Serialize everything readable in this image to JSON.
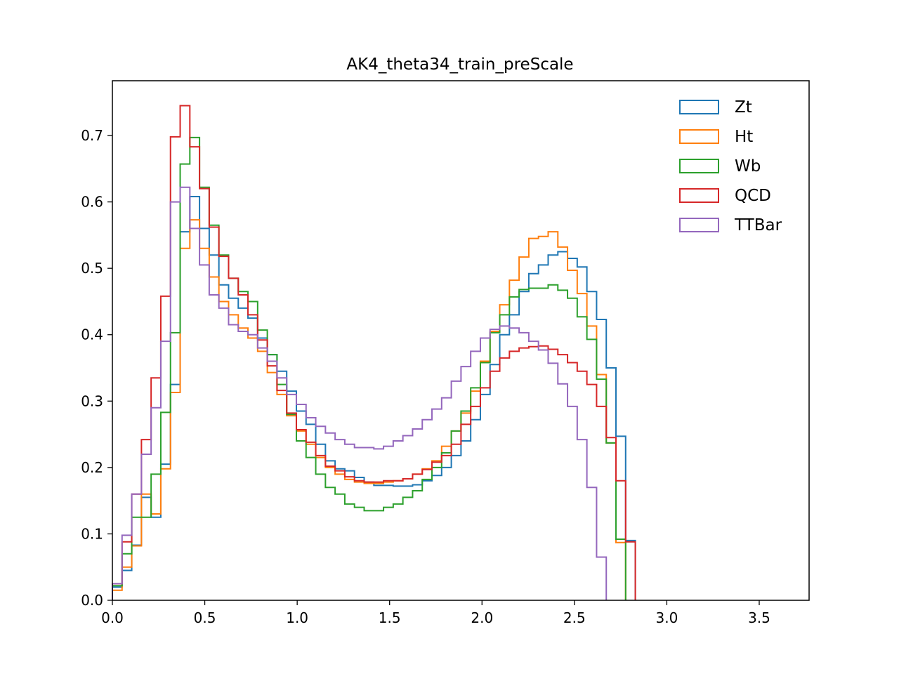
{
  "chart_data": {
    "type": "histogram-step",
    "title": "AK4_theta34_train_preScale",
    "xlabel": "",
    "ylabel": "",
    "xlim": [
      0.0,
      3.7699
    ],
    "ylim": [
      0.0,
      0.7825
    ],
    "xticks": [
      0.0,
      0.5,
      1.0,
      1.5,
      2.0,
      2.5,
      3.0,
      3.5
    ],
    "xtick_labels": [
      "0.0",
      "0.5",
      "1.0",
      "1.5",
      "2.0",
      "2.5",
      "3.0",
      "3.5"
    ],
    "yticks": [
      0.0,
      0.1,
      0.2,
      0.3,
      0.4,
      0.5,
      0.6,
      0.7
    ],
    "ytick_labels": [
      "0.0",
      "0.1",
      "0.2",
      "0.3",
      "0.4",
      "0.5",
      "0.6",
      "0.7"
    ],
    "grid": false,
    "legend_position": "upper right",
    "bin_edges_start": 0.0,
    "bin_width": 0.0524,
    "n_bins": 60,
    "series": [
      {
        "name": "Zt",
        "color": "#1f77b4",
        "values": [
          0.02,
          0.045,
          0.083,
          0.155,
          0.125,
          0.205,
          0.325,
          0.555,
          0.608,
          0.56,
          0.52,
          0.475,
          0.455,
          0.44,
          0.425,
          0.395,
          0.37,
          0.345,
          0.315,
          0.285,
          0.265,
          0.235,
          0.21,
          0.198,
          0.195,
          0.185,
          0.178,
          0.173,
          0.173,
          0.172,
          0.172,
          0.174,
          0.18,
          0.188,
          0.2,
          0.218,
          0.24,
          0.272,
          0.31,
          0.355,
          0.4,
          0.43,
          0.465,
          0.492,
          0.505,
          0.52,
          0.525,
          0.515,
          0.502,
          0.465,
          0.423,
          0.35,
          0.247,
          0.09,
          0.0,
          0.0,
          0.0,
          0.0,
          0.0,
          0.0
        ]
      },
      {
        "name": "Ht",
        "color": "#ff7f0e",
        "values": [
          0.015,
          0.05,
          0.082,
          0.16,
          0.13,
          0.198,
          0.313,
          0.53,
          0.573,
          0.53,
          0.487,
          0.45,
          0.43,
          0.41,
          0.395,
          0.375,
          0.343,
          0.31,
          0.278,
          0.255,
          0.235,
          0.215,
          0.2,
          0.19,
          0.182,
          0.178,
          0.176,
          0.176,
          0.178,
          0.18,
          0.183,
          0.19,
          0.198,
          0.21,
          0.232,
          0.255,
          0.282,
          0.315,
          0.36,
          0.405,
          0.445,
          0.482,
          0.517,
          0.545,
          0.548,
          0.555,
          0.532,
          0.497,
          0.462,
          0.413,
          0.34,
          0.237,
          0.087,
          0.0,
          0.0,
          0.0,
          0.0,
          0.0,
          0.0,
          0.0
        ]
      },
      {
        "name": "Wb",
        "color": "#2ca02c",
        "values": [
          0.022,
          0.07,
          0.125,
          0.125,
          0.19,
          0.283,
          0.403,
          0.657,
          0.697,
          0.622,
          0.565,
          0.52,
          0.485,
          0.465,
          0.45,
          0.407,
          0.37,
          0.325,
          0.28,
          0.24,
          0.215,
          0.19,
          0.17,
          0.16,
          0.145,
          0.14,
          0.135,
          0.135,
          0.14,
          0.145,
          0.155,
          0.165,
          0.182,
          0.2,
          0.222,
          0.255,
          0.285,
          0.32,
          0.358,
          0.403,
          0.43,
          0.457,
          0.468,
          0.47,
          0.47,
          0.475,
          0.467,
          0.455,
          0.427,
          0.393,
          0.333,
          0.237,
          0.092,
          0.0,
          0.0,
          0.0,
          0.0,
          0.0,
          0.0,
          0.0
        ]
      },
      {
        "name": "QCD",
        "color": "#d62728",
        "values": [
          0.025,
          0.088,
          0.16,
          0.242,
          0.335,
          0.458,
          0.698,
          0.745,
          0.683,
          0.62,
          0.562,
          0.518,
          0.485,
          0.46,
          0.43,
          0.392,
          0.353,
          0.316,
          0.282,
          0.257,
          0.238,
          0.218,
          0.202,
          0.195,
          0.186,
          0.18,
          0.178,
          0.178,
          0.18,
          0.18,
          0.183,
          0.19,
          0.197,
          0.208,
          0.218,
          0.235,
          0.265,
          0.292,
          0.32,
          0.345,
          0.365,
          0.375,
          0.38,
          0.382,
          0.383,
          0.378,
          0.37,
          0.358,
          0.345,
          0.325,
          0.292,
          0.245,
          0.18,
          0.088,
          0.0,
          0.0,
          0.0,
          0.0,
          0.0,
          0.0
        ]
      },
      {
        "name": "TTBar",
        "color": "#9467bd",
        "values": [
          0.025,
          0.098,
          0.16,
          0.22,
          0.29,
          0.39,
          0.6,
          0.622,
          0.56,
          0.505,
          0.46,
          0.44,
          0.415,
          0.405,
          0.4,
          0.38,
          0.36,
          0.335,
          0.31,
          0.295,
          0.275,
          0.262,
          0.252,
          0.242,
          0.235,
          0.23,
          0.23,
          0.228,
          0.232,
          0.24,
          0.248,
          0.258,
          0.272,
          0.288,
          0.305,
          0.33,
          0.352,
          0.375,
          0.395,
          0.408,
          0.413,
          0.41,
          0.403,
          0.39,
          0.377,
          0.357,
          0.326,
          0.292,
          0.242,
          0.17,
          0.065,
          0.0,
          0.0,
          0.0,
          0.0,
          0.0,
          0.0,
          0.0,
          0.0,
          0.0
        ]
      }
    ]
  }
}
